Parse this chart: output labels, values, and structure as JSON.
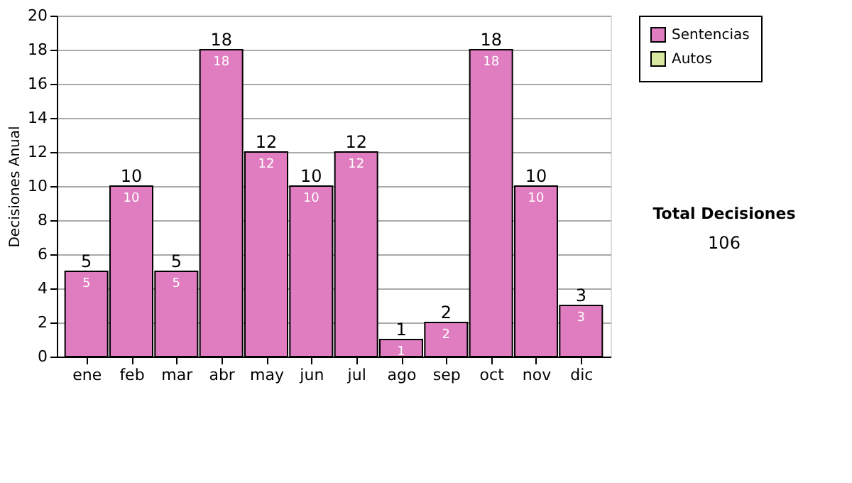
{
  "chart_data": {
    "type": "bar",
    "ylabel": "Decisiones Anual",
    "categories": [
      "ene",
      "feb",
      "mar",
      "abr",
      "may",
      "jun",
      "jul",
      "ago",
      "sep",
      "oct",
      "nov",
      "dic"
    ],
    "series": [
      {
        "name": "Sentencias",
        "color": "#e07cc0",
        "values": [
          5,
          10,
          5,
          18,
          12,
          10,
          12,
          1,
          2,
          18,
          10,
          3
        ]
      },
      {
        "name": "Autos",
        "color": "#d8e8a0",
        "values": [
          null,
          null,
          null,
          null,
          null,
          null,
          null,
          null,
          null,
          null,
          null,
          null
        ]
      }
    ],
    "stacked": true,
    "totals": [
      "5",
      "10",
      "5",
      "18",
      "12",
      "10",
      "12",
      "1",
      "2",
      "18",
      "10",
      "3"
    ],
    "ylim": [
      0,
      20
    ],
    "yticks": [
      0,
      2,
      4,
      6,
      8,
      10,
      12,
      14,
      16,
      18,
      20
    ],
    "grid": "y",
    "legend": "right",
    "data_labels": true,
    "annotations": [
      "Total Decisiones",
      "106"
    ]
  }
}
